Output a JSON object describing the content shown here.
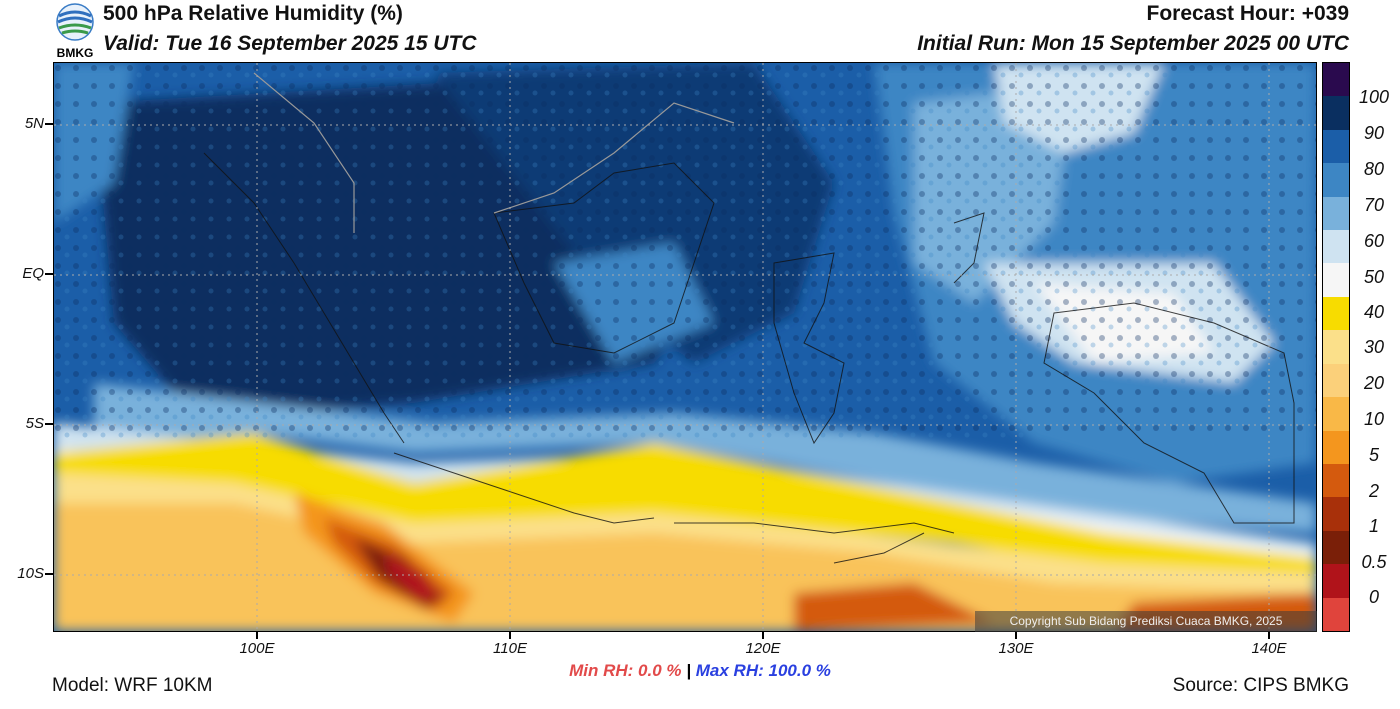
{
  "header": {
    "title": "500 hPa Relative Humidity (%)",
    "valid": "Valid: Tue 16 September 2025 15 UTC",
    "forecast_hour": "Forecast Hour: +039",
    "initial_run": "Initial Run: Mon 15 September 2025 00 UTC",
    "logo_text": "BMKG"
  },
  "map": {
    "lat_labels": [
      "5N",
      "EQ",
      "5S",
      "10S"
    ],
    "lon_labels": [
      "100E",
      "110E",
      "120E",
      "130E",
      "140E"
    ],
    "copyright": "Copyright Sub Bidang Prediksi Cuaca BMKG, 2025"
  },
  "colorbar": {
    "labels": [
      "100",
      "90",
      "80",
      "70",
      "60",
      "50",
      "40",
      "30",
      "20",
      "10",
      "5",
      "2",
      "1",
      "0.5",
      "0"
    ],
    "colors": [
      "#2a0a4e",
      "#0a2f60",
      "#1b5ea8",
      "#3d86c4",
      "#79b1db",
      "#cfe3f1",
      "#f6f6f6",
      "#f7dc00",
      "#fbe08a",
      "#fbd07a",
      "#f9b847",
      "#f4961e",
      "#d45a0e",
      "#a8300a",
      "#7a1f08",
      "#b0131a",
      "#e0443c"
    ]
  },
  "stats": {
    "min_label": "Min RH:",
    "min_value": "0.0 %",
    "separator": "|",
    "max_label": "Max RH:",
    "max_value": "100.0 %"
  },
  "footer": {
    "model": "Model: WRF 10KM",
    "source": "Source: CIPS BMKG"
  }
}
